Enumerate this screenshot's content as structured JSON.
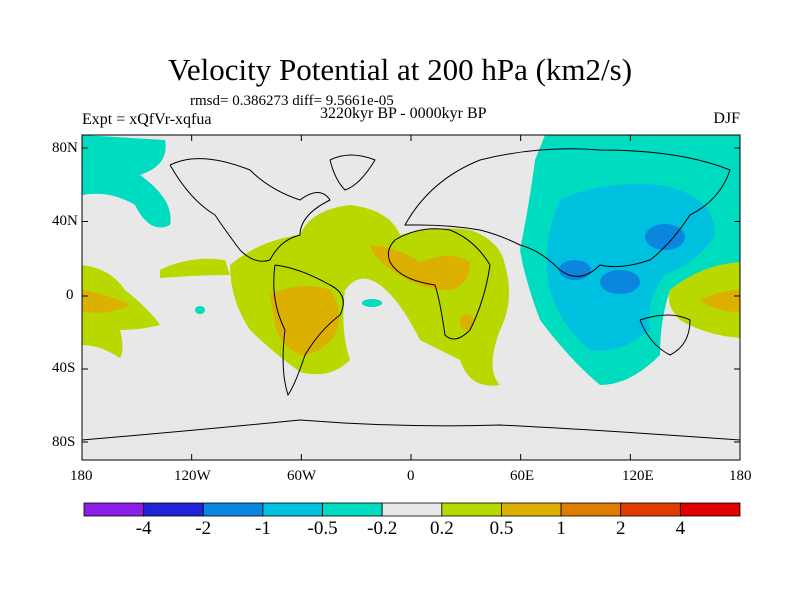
{
  "title": "Velocity Potential at 200 hPa (km2/s)",
  "stats": "rmsd= 0.386273 diff= 9.5661e-05",
  "experiment": "Expt = xQfVr-xqfua",
  "period": "3220kyr BP - 0000kyr BP",
  "season": "DJF",
  "lat_labels": [
    "80N",
    "40N",
    "0",
    "40S",
    "80S"
  ],
  "lon_labels": [
    "180",
    "120W",
    "60W",
    "0",
    "60E",
    "120E",
    "180"
  ],
  "colorbar": {
    "colors": [
      "#8a1ee6",
      "#2222d6",
      "#0a86de",
      "#00c0e0",
      "#00dcc0",
      "#e8e8e8",
      "#b8d800",
      "#dcb000",
      "#e07c00",
      "#e03c00",
      "#e00000"
    ],
    "labels": [
      "-4",
      "-2",
      "-1",
      "-0.5",
      "-0.2",
      "0.2",
      "0.5",
      "1",
      "2",
      "4"
    ]
  }
}
